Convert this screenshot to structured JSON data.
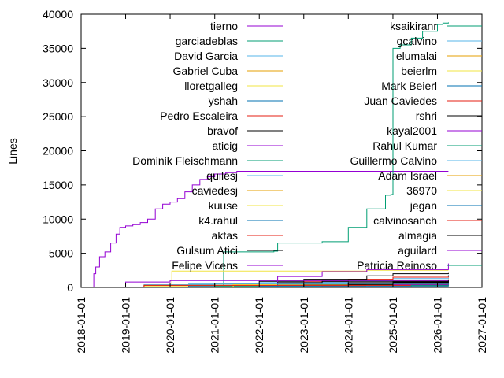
{
  "chart_data": {
    "type": "line",
    "title": "",
    "xlabel": "",
    "ylabel": "Lines",
    "xlim": [
      "2018-01-01",
      "2027-01-01"
    ],
    "ylim": [
      0,
      40000
    ],
    "y_ticks": [
      0,
      5000,
      10000,
      15000,
      20000,
      25000,
      30000,
      35000,
      40000
    ],
    "y_tick_labels": [
      "0",
      "5000",
      "10000",
      "15000",
      "20000",
      "25000",
      "30000",
      "35000",
      "40000"
    ],
    "x_ticks": [
      "2018-01-01",
      "2019-01-01",
      "2020-01-01",
      "2021-01-01",
      "2022-01-01",
      "2023-01-01",
      "2024-01-01",
      "2025-01-01",
      "2026-01-01",
      "2027-01-01"
    ],
    "grid": false,
    "legend_placement": "inside, two columns (top-left and top-right)",
    "series": [
      {
        "name": "tierno",
        "color": "#9400d3",
        "points": [
          [
            "2018-01-01",
            0
          ],
          [
            "2018-04-01",
            0
          ],
          [
            "2018-04-15",
            2000
          ],
          [
            "2018-05-01",
            3000
          ],
          [
            "2018-06-01",
            4500
          ],
          [
            "2018-07-15",
            5200
          ],
          [
            "2018-09-01",
            6500
          ],
          [
            "2018-10-15",
            7800
          ],
          [
            "2018-11-15",
            8800
          ],
          [
            "2019-01-01",
            9000
          ],
          [
            "2019-03-01",
            9200
          ],
          [
            "2019-05-01",
            9500
          ],
          [
            "2019-07-01",
            10000
          ],
          [
            "2019-09-01",
            11500
          ],
          [
            "2019-11-01",
            12200
          ],
          [
            "2020-01-01",
            12500
          ],
          [
            "2020-03-01",
            13000
          ],
          [
            "2020-05-01",
            14000
          ],
          [
            "2020-07-01",
            15000
          ],
          [
            "2020-09-01",
            15800
          ],
          [
            "2020-11-01",
            16200
          ],
          [
            "2021-01-01",
            16600
          ],
          [
            "2021-04-01",
            16800
          ],
          [
            "2021-07-01",
            17000
          ],
          [
            "2026-04-01",
            17000
          ]
        ]
      },
      {
        "name": "garciadeblas",
        "color": "#009e73",
        "points": [
          [
            "2021-03-01",
            0
          ],
          [
            "2021-03-15",
            5200
          ],
          [
            "2022-05-01",
            5300
          ],
          [
            "2022-06-01",
            6500
          ],
          [
            "2023-06-01",
            6700
          ],
          [
            "2024-01-01",
            8800
          ],
          [
            "2024-06-01",
            11500
          ],
          [
            "2024-11-01",
            13500
          ],
          [
            "2024-12-15",
            13600
          ],
          [
            "2025-01-01",
            35000
          ],
          [
            "2025-03-01",
            35500
          ],
          [
            "2025-06-01",
            36500
          ],
          [
            "2025-09-01",
            37500
          ],
          [
            "2026-01-01",
            38500
          ],
          [
            "2026-02-15",
            38700
          ],
          [
            "2026-04-01",
            38800
          ]
        ]
      },
      {
        "name": "David Garcia",
        "color": "#56b4e9",
        "points": [
          [
            "2019-06-01",
            0
          ],
          [
            "2020-01-01",
            400
          ],
          [
            "2021-01-01",
            600
          ],
          [
            "2022-01-01",
            700
          ],
          [
            "2023-01-01",
            900
          ],
          [
            "2024-01-01",
            1100
          ],
          [
            "2025-01-01",
            1300
          ],
          [
            "2026-04-01",
            1400
          ]
        ]
      },
      {
        "name": "Gabriel Cuba",
        "color": "#e69f00",
        "points": [
          [
            "2022-06-01",
            0
          ],
          [
            "2023-01-01",
            300
          ],
          [
            "2024-01-01",
            600
          ],
          [
            "2025-01-01",
            900
          ],
          [
            "2026-04-01",
            1200
          ]
        ]
      },
      {
        "name": "lloretgalleg",
        "color": "#f0e442",
        "points": [
          [
            "2020-01-01",
            0
          ],
          [
            "2020-01-15",
            2400
          ],
          [
            "2024-06-01",
            2500
          ],
          [
            "2026-04-01",
            2500
          ]
        ]
      },
      {
        "name": "yshah",
        "color": "#0072b2",
        "points": [
          [
            "2021-06-01",
            0
          ],
          [
            "2022-01-01",
            400
          ],
          [
            "2023-01-01",
            700
          ],
          [
            "2024-01-01",
            1000
          ],
          [
            "2025-01-01",
            1500
          ],
          [
            "2026-04-01",
            1800
          ]
        ]
      },
      {
        "name": "Pedro Escaleira",
        "color": "#e51e10",
        "points": [
          [
            "2021-06-01",
            0
          ],
          [
            "2022-01-01",
            500
          ],
          [
            "2023-01-01",
            900
          ],
          [
            "2024-01-01",
            1200
          ],
          [
            "2025-01-01",
            1500
          ],
          [
            "2026-04-01",
            1600
          ]
        ]
      },
      {
        "name": "bravof",
        "color": "#000000",
        "points": [
          [
            "2020-06-01",
            0
          ],
          [
            "2021-01-01",
            600
          ],
          [
            "2022-01-01",
            900
          ],
          [
            "2023-01-01",
            1200
          ],
          [
            "2024-06-01",
            1700
          ],
          [
            "2025-01-01",
            2000
          ],
          [
            "2026-04-01",
            2100
          ]
        ]
      },
      {
        "name": "aticig",
        "color": "#9400d3",
        "points": [
          [
            "2021-06-01",
            0
          ],
          [
            "2022-06-01",
            1600
          ],
          [
            "2023-06-01",
            2300
          ],
          [
            "2024-06-01",
            2600
          ],
          [
            "2026-04-01",
            3500
          ]
        ]
      },
      {
        "name": "Dominik Fleischmann",
        "color": "#009e73",
        "points": [
          [
            "2019-01-01",
            0
          ],
          [
            "2020-01-01",
            300
          ],
          [
            "2021-01-01",
            500
          ],
          [
            "2026-04-01",
            500
          ]
        ]
      },
      {
        "name": "quilesj",
        "color": "#56b4e9",
        "points": [
          [
            "2018-06-01",
            0
          ],
          [
            "2019-06-01",
            300
          ],
          [
            "2020-06-01",
            600
          ],
          [
            "2026-04-01",
            700
          ]
        ]
      },
      {
        "name": "caviedesj",
        "color": "#e69f00",
        "points": [
          [
            "2019-06-01",
            0
          ],
          [
            "2020-06-01",
            200
          ],
          [
            "2021-06-01",
            400
          ],
          [
            "2026-04-01",
            400
          ]
        ]
      },
      {
        "name": "kuuse",
        "color": "#f0e442",
        "points": [
          [
            "2018-06-01",
            0
          ],
          [
            "2019-06-01",
            200
          ],
          [
            "2026-04-01",
            300
          ]
        ]
      },
      {
        "name": "k4.rahul",
        "color": "#0072b2",
        "points": [
          [
            "2019-06-01",
            0
          ],
          [
            "2020-06-01",
            200
          ],
          [
            "2026-04-01",
            300
          ]
        ]
      },
      {
        "name": "aktas",
        "color": "#e51e10",
        "points": [
          [
            "2020-06-01",
            0
          ],
          [
            "2021-06-01",
            300
          ],
          [
            "2026-04-01",
            400
          ]
        ]
      },
      {
        "name": "Gulsum Atici",
        "color": "#000000",
        "points": [
          [
            "2021-06-01",
            0
          ],
          [
            "2022-06-01",
            700
          ],
          [
            "2023-06-01",
            900
          ],
          [
            "2026-04-01",
            1000
          ]
        ]
      },
      {
        "name": "Felipe Vicens",
        "color": "#9400d3",
        "points": [
          [
            "2018-06-01",
            0
          ],
          [
            "2019-01-01",
            800
          ],
          [
            "2020-01-01",
            1000
          ],
          [
            "2026-04-01",
            1100
          ]
        ]
      },
      {
        "name": "ksaikiranr",
        "color": "#009e73",
        "points": [
          [
            "2020-01-01",
            0
          ],
          [
            "2021-01-01",
            200
          ],
          [
            "2026-04-01",
            300
          ]
        ]
      },
      {
        "name": "gcalvino",
        "color": "#56b4e9",
        "points": [
          [
            "2018-06-01",
            0
          ],
          [
            "2019-06-01",
            400
          ],
          [
            "2020-06-01",
            600
          ],
          [
            "2026-04-01",
            800
          ]
        ]
      },
      {
        "name": "elumalai",
        "color": "#e69f00",
        "points": [
          [
            "2020-06-01",
            0
          ],
          [
            "2021-06-01",
            300
          ],
          [
            "2026-04-01",
            300
          ]
        ]
      },
      {
        "name": "beierlm",
        "color": "#f0e442",
        "points": [
          [
            "2020-06-01",
            0
          ],
          [
            "2021-06-01",
            400
          ],
          [
            "2026-04-01",
            500
          ]
        ]
      },
      {
        "name": "Mark Beierl",
        "color": "#0072b2",
        "points": [
          [
            "2021-06-01",
            0
          ],
          [
            "2022-06-01",
            500
          ],
          [
            "2026-04-01",
            600
          ]
        ]
      },
      {
        "name": "Juan Caviedes",
        "color": "#e51e10",
        "points": [
          [
            "2022-06-01",
            0
          ],
          [
            "2023-06-01",
            200
          ],
          [
            "2026-04-01",
            300
          ]
        ]
      },
      {
        "name": "rshri",
        "color": "#000000",
        "points": [
          [
            "2023-01-01",
            0
          ],
          [
            "2024-01-01",
            400
          ],
          [
            "2025-01-01",
            800
          ],
          [
            "2026-04-01",
            1000
          ]
        ]
      },
      {
        "name": "kayal2001",
        "color": "#9400d3",
        "points": [
          [
            "2024-01-01",
            0
          ],
          [
            "2025-01-01",
            400
          ],
          [
            "2026-04-01",
            500
          ]
        ]
      },
      {
        "name": "Rahul Kumar",
        "color": "#009e73",
        "points": [
          [
            "2023-06-01",
            0
          ],
          [
            "2024-06-01",
            300
          ],
          [
            "2026-04-01",
            400
          ]
        ]
      },
      {
        "name": "Guillermo Calvino",
        "color": "#56b4e9",
        "points": [
          [
            "2023-06-01",
            0
          ],
          [
            "2024-06-01",
            200
          ],
          [
            "2026-04-01",
            300
          ]
        ]
      },
      {
        "name": "Adam Israel",
        "color": "#e69f00",
        "points": [
          [
            "2018-06-01",
            0
          ],
          [
            "2019-06-01",
            300
          ],
          [
            "2026-04-01",
            300
          ]
        ]
      },
      {
        "name": "36970",
        "color": "#f0e442",
        "points": [
          [
            "2024-06-01",
            0
          ],
          [
            "2025-06-01",
            200
          ],
          [
            "2026-04-01",
            200
          ]
        ]
      },
      {
        "name": "jegan",
        "color": "#0072b2",
        "points": [
          [
            "2021-01-01",
            0
          ],
          [
            "2022-01-01",
            200
          ],
          [
            "2026-04-01",
            200
          ]
        ]
      },
      {
        "name": "calvinosanch",
        "color": "#e51e10",
        "points": [
          [
            "2018-06-01",
            0
          ],
          [
            "2019-06-01",
            300
          ],
          [
            "2026-04-01",
            300
          ]
        ]
      },
      {
        "name": "almagia",
        "color": "#000000",
        "points": [
          [
            "2022-01-01",
            0
          ],
          [
            "2023-01-01",
            500
          ],
          [
            "2024-01-01",
            700
          ],
          [
            "2026-04-01",
            800
          ]
        ]
      },
      {
        "name": "aguilard",
        "color": "#9400d3",
        "points": [
          [
            "2024-06-01",
            0
          ],
          [
            "2025-06-01",
            300
          ],
          [
            "2026-04-01",
            400
          ]
        ]
      },
      {
        "name": "Patricia Reinoso",
        "color": "#009e73",
        "points": [
          [
            "2024-06-01",
            0
          ],
          [
            "2025-06-01",
            300
          ],
          [
            "2026-04-01",
            400
          ]
        ]
      }
    ]
  }
}
